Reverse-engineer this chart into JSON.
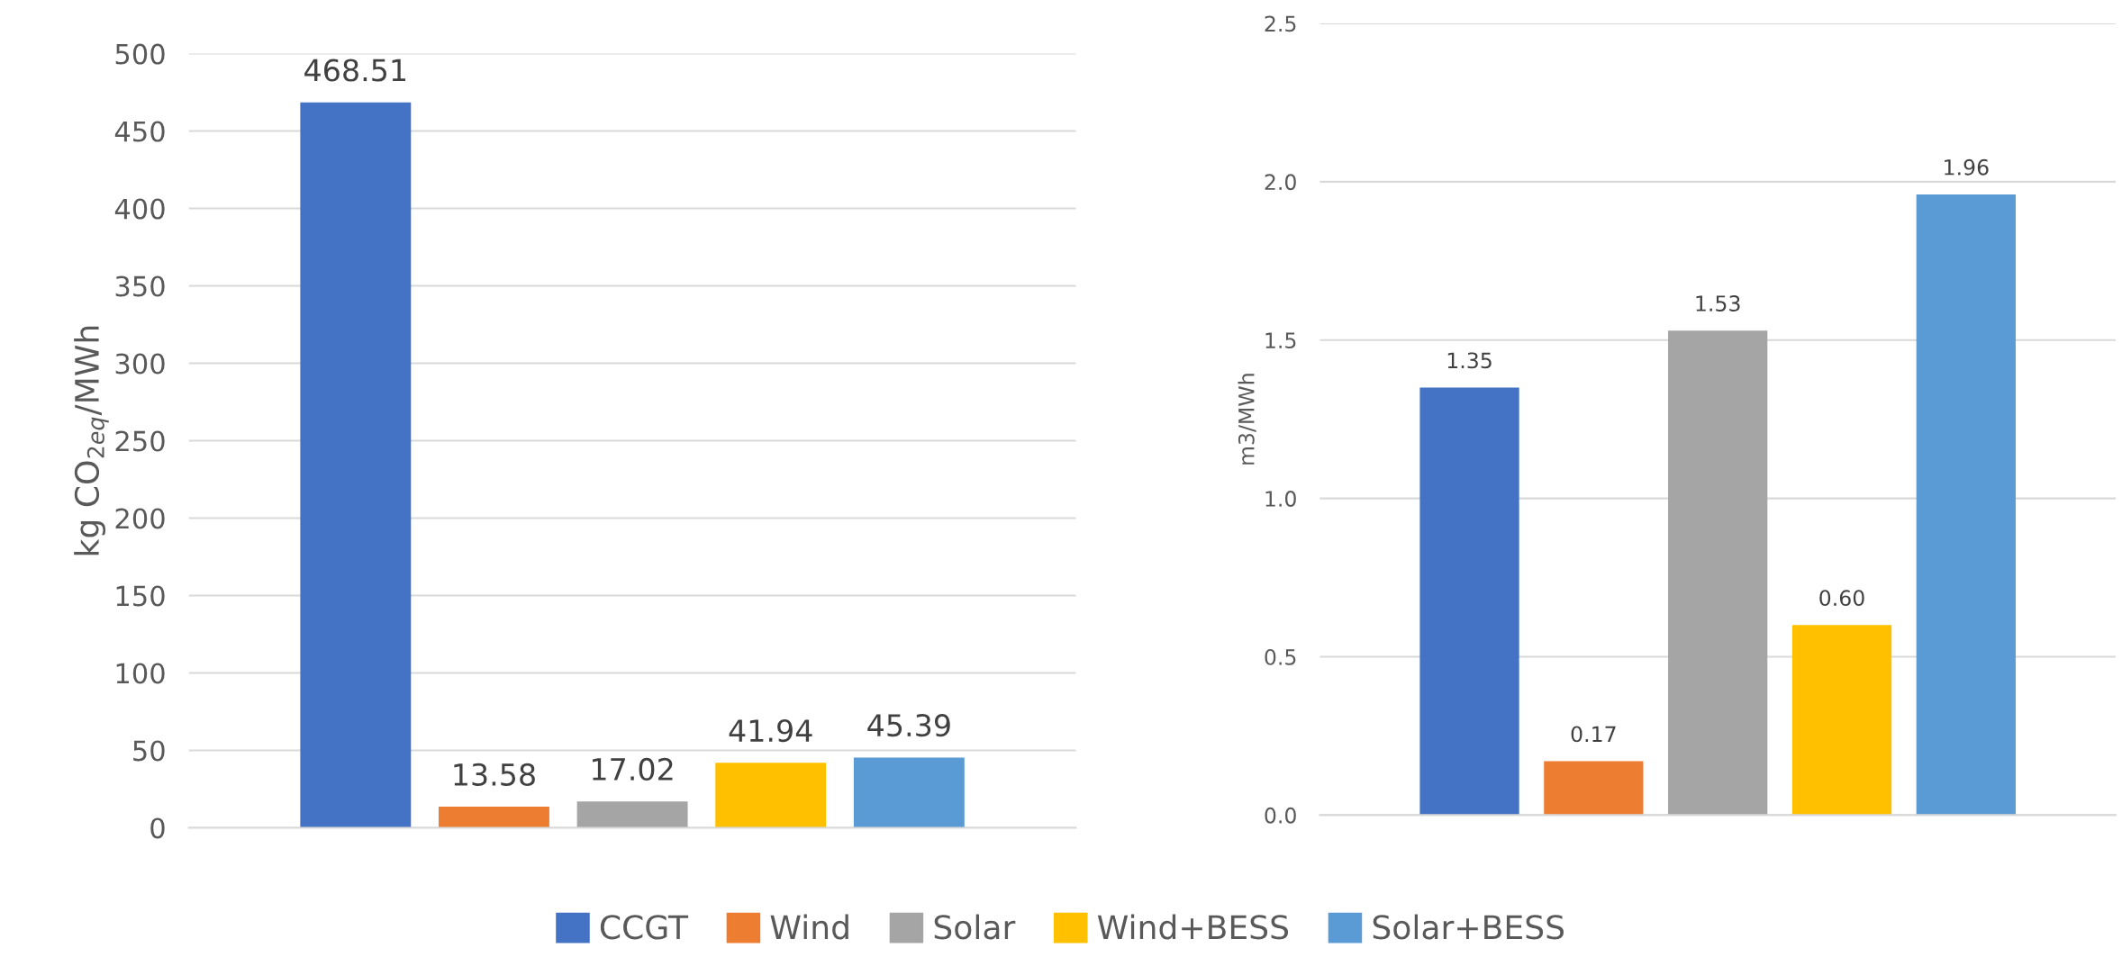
{
  "chart_data": [
    {
      "type": "bar",
      "ylabel": "kg CO$_{2eq}$/MWh",
      "categories": [
        null
      ],
      "ylim": [
        0,
        500
      ],
      "yticks": [
        0,
        50,
        100,
        150,
        200,
        250,
        300,
        350,
        400,
        450,
        500
      ],
      "grid": "y",
      "data_labels": true,
      "legend": "bottom",
      "series": [
        {
          "name": "CCGT",
          "color": "#4472c4",
          "values": [
            468.51
          ]
        },
        {
          "name": "Wind",
          "color": "#ed7d31",
          "values": [
            13.58
          ]
        },
        {
          "name": "Solar",
          "color": "#a5a5a5",
          "values": [
            17.02
          ]
        },
        {
          "name": "Wind+BESS",
          "color": "#ffc000",
          "values": [
            41.94
          ]
        },
        {
          "name": "Solar+BESS",
          "color": "#5b9bd5",
          "values": [
            45.39
          ]
        }
      ]
    },
    {
      "type": "bar",
      "ylabel": "m3/MWh",
      "categories": [
        null
      ],
      "ylim": [
        0,
        2.5
      ],
      "yticks": [
        {
          "value": 0,
          "label": "0.0"
        },
        {
          "value": 0.5,
          "label": "0.5"
        },
        {
          "value": 1,
          "label": "1.0"
        },
        {
          "value": 1.5,
          "label": "1.5"
        },
        {
          "value": 2,
          "label": "2.0"
        },
        {
          "value": 2.5,
          "label": "2.5"
        }
      ],
      "grid": "y",
      "series": [
        {
          "color": "#4472c4",
          "values": [
            1.35
          ],
          "value_labels": [
            "1.35"
          ]
        },
        {
          "color": "#ed7d31",
          "values": [
            0.17
          ],
          "value_labels": [
            "0.17"
          ]
        },
        {
          "color": "#a5a5a5",
          "values": [
            1.53
          ],
          "value_labels": [
            "1.53"
          ]
        },
        {
          "color": "#ffc000",
          "values": [
            0.6
          ],
          "value_labels": [
            "0.60"
          ]
        },
        {
          "color": "#5b9bd5",
          "values": [
            1.96
          ],
          "value_labels": [
            "1.96"
          ]
        }
      ]
    }
  ]
}
